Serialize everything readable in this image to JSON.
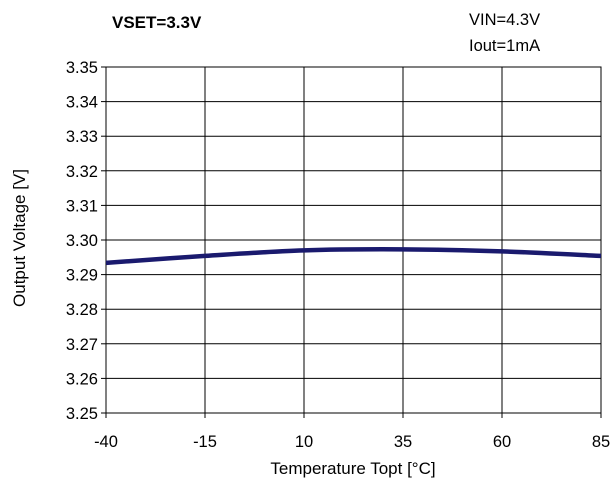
{
  "chart_data": {
    "type": "line",
    "title": "VSET=3.3V",
    "annotations": [
      "VIN=4.3V",
      "Iout=1mA"
    ],
    "xlabel": "Temperature Topt [°C]",
    "ylabel": "Output Voltage [V]",
    "xlim": [
      -40,
      85
    ],
    "ylim": [
      3.25,
      3.35
    ],
    "x_ticks": [
      -40,
      -15,
      10,
      35,
      60,
      85
    ],
    "x_tick_labels": [
      "-40",
      "-15",
      "10",
      "35",
      "60",
      "85"
    ],
    "y_ticks": [
      3.25,
      3.26,
      3.27,
      3.28,
      3.29,
      3.3,
      3.31,
      3.32,
      3.33,
      3.34,
      3.35
    ],
    "y_tick_labels": [
      "3.25",
      "3.26",
      "3.27",
      "3.28",
      "3.29",
      "3.30",
      "3.31",
      "3.32",
      "3.33",
      "3.34",
      "3.35"
    ],
    "grid": true,
    "series": [
      {
        "color": "#1a1a6e",
        "x": [
          -40,
          -15,
          10,
          35,
          60,
          85
        ],
        "y": [
          3.2934,
          3.2954,
          3.297,
          3.2973,
          3.2967,
          3.2954
        ]
      }
    ]
  }
}
